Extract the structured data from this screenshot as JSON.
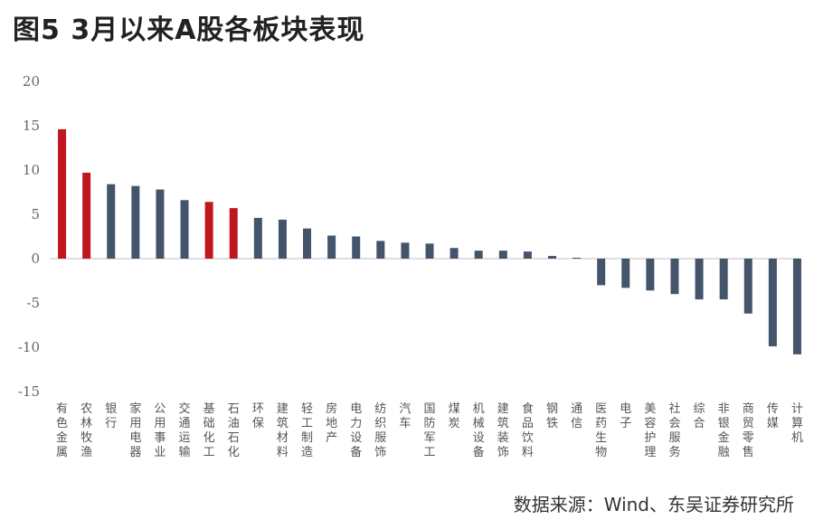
{
  "figure": {
    "title": "图5  3月以来A股各板块表现",
    "source": "数据来源：Wind、东吴证券研究所"
  },
  "colors": {
    "highlight": "#c0161f",
    "normal": "#44546a",
    "axis": "#bfbfbf",
    "tick": "#666666"
  },
  "chart_data": {
    "type": "bar",
    "title": "3月以来A股各板块表现",
    "xlabel": "",
    "ylabel": "",
    "ylim": [
      -15,
      20
    ],
    "yticks": [
      20,
      15,
      10,
      5,
      0,
      -5,
      -10,
      -15
    ],
    "categories": [
      "有色金属",
      "农林牧渔",
      "银行",
      "家用电器",
      "公用事业",
      "交通运输",
      "基础化工",
      "石油石化",
      "环保",
      "建筑材料",
      "轻工制造",
      "房地产",
      "电力设备",
      "纺织服饰",
      "汽车",
      "国防军工",
      "煤炭",
      "机械设备",
      "建筑装饰",
      "食品饮料",
      "钢铁",
      "通信",
      "医药生物",
      "电子",
      "美容护理",
      "社会服务",
      "综合",
      "非银金融",
      "商贸零售",
      "传媒",
      "计算机"
    ],
    "values": [
      14.6,
      9.7,
      8.4,
      8.2,
      7.8,
      6.6,
      6.4,
      5.7,
      4.6,
      4.4,
      3.4,
      2.6,
      2.5,
      2.0,
      1.8,
      1.7,
      1.2,
      0.9,
      0.9,
      0.8,
      0.3,
      0.1,
      -3.0,
      -3.3,
      -3.6,
      -4.0,
      -4.6,
      -4.6,
      -6.2,
      -9.9,
      -10.8
    ],
    "highlighted": [
      true,
      true,
      false,
      false,
      false,
      false,
      true,
      true,
      false,
      false,
      false,
      false,
      false,
      false,
      false,
      false,
      false,
      false,
      false,
      false,
      false,
      false,
      false,
      false,
      false,
      false,
      false,
      false,
      false,
      false,
      false
    ],
    "grid": false,
    "legend": "none"
  }
}
